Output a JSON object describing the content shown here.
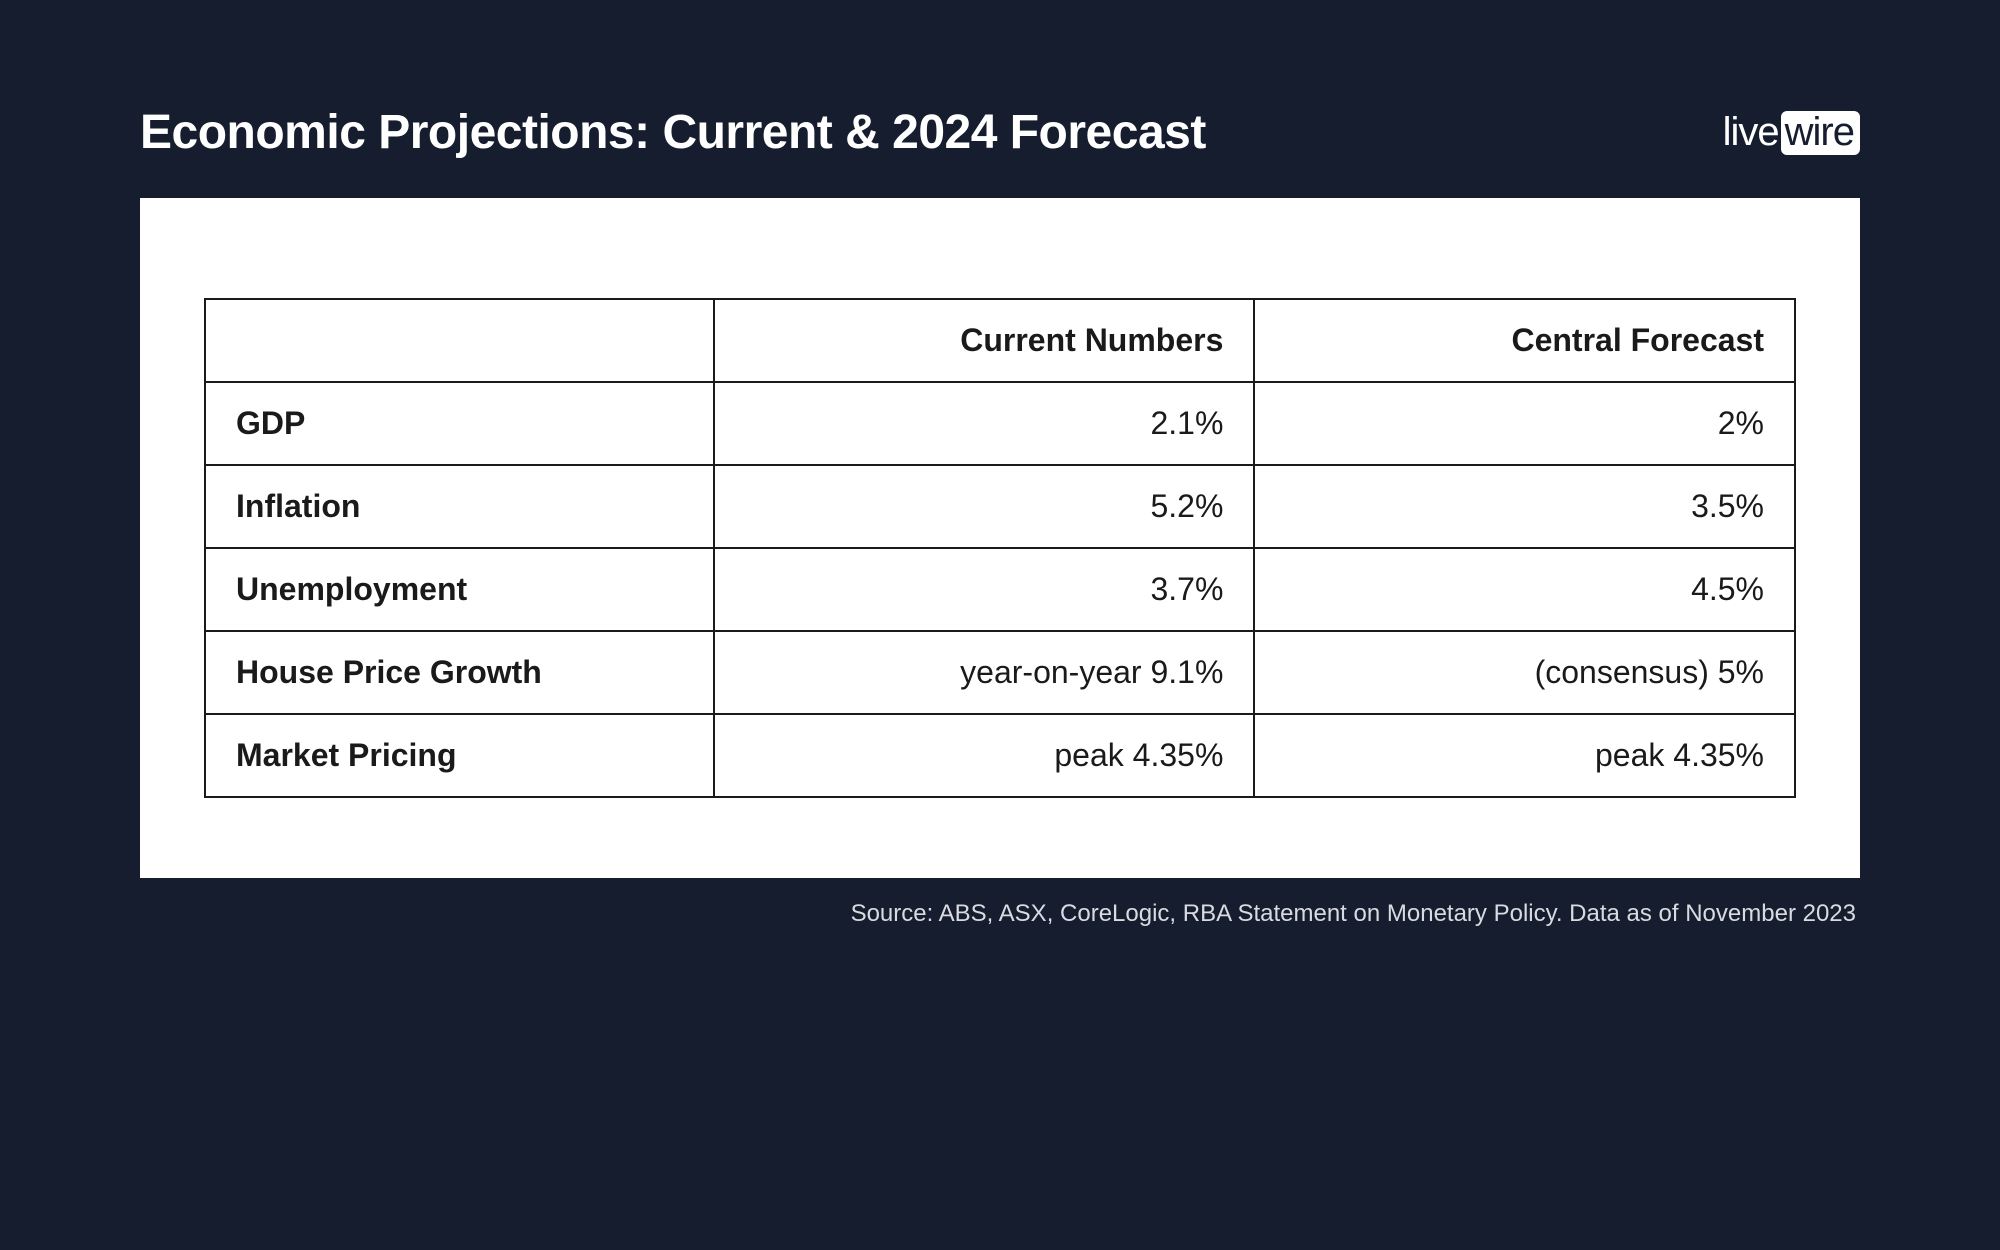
{
  "title": "Economic Projections: Current & 2024 Forecast",
  "logo": {
    "part1": "live",
    "part2": "wire"
  },
  "table": {
    "columns": [
      "",
      "Current Numbers",
      "Central Forecast"
    ],
    "rows": [
      {
        "label": "GDP",
        "current": "2.1%",
        "forecast": "2%"
      },
      {
        "label": "Inflation",
        "current": "5.2%",
        "forecast": "3.5%"
      },
      {
        "label": "Unemployment",
        "current": "3.7%",
        "forecast": "4.5%"
      },
      {
        "label": "House Price Growth",
        "current": "year-on-year 9.1%",
        "forecast": "(consensus) 5%"
      },
      {
        "label": "Market Pricing",
        "current": "peak 4.35%",
        "forecast": "peak 4.35%"
      }
    ],
    "border_color": "#1a1a1a",
    "text_color": "#1a1a1a",
    "background_color": "#ffffff",
    "header_fontsize": 32,
    "cell_fontsize": 32,
    "col_widths_pct": [
      32,
      34,
      34
    ]
  },
  "source": "Source: ABS, ASX, CoreLogic, RBA Statement on Monetary Policy. Data as of November 2023",
  "styling": {
    "page_background": "#151d2f",
    "title_color": "#ffffff",
    "title_fontsize": 48,
    "source_color": "#d8dbe0",
    "source_fontsize": 24
  }
}
